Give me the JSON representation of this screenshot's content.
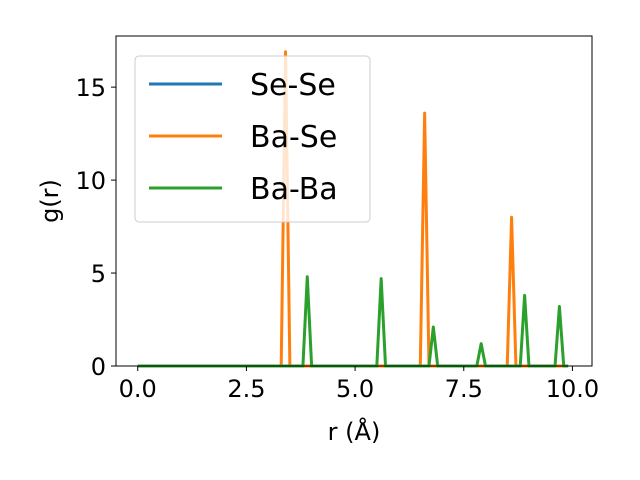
{
  "chart_data": {
    "type": "line",
    "title": "",
    "xlabel": "r (Å)",
    "ylabel": "g(r)",
    "xlim": [
      -0.5,
      10.45
    ],
    "ylim": [
      0,
      17.75
    ],
    "xticks": [
      0.0,
      2.5,
      5.0,
      7.5,
      10.0
    ],
    "xtick_labels": [
      "0.0",
      "2.5",
      "5.0",
      "7.5",
      "10.0"
    ],
    "yticks": [
      0,
      5,
      10,
      15
    ],
    "ytick_labels": [
      "0",
      "5",
      "10",
      "15"
    ],
    "grid": false,
    "legend_position": "upper-left",
    "series": [
      {
        "name": "Se-Se",
        "color": "#1f77b4",
        "x": [
          0.0,
          3.3,
          3.4,
          3.5,
          6.5,
          6.6,
          6.7,
          8.5,
          8.6,
          8.7,
          9.9
        ],
        "y": [
          0,
          0,
          0,
          0,
          0,
          0,
          0,
          0,
          0,
          0,
          0
        ]
      },
      {
        "name": "Ba-Se",
        "color": "#ff7f0e",
        "x": [
          0.0,
          3.3,
          3.4,
          3.5,
          6.5,
          6.6,
          6.7,
          8.5,
          8.6,
          8.7,
          9.9
        ],
        "y": [
          0,
          0,
          16.9,
          0,
          0,
          13.6,
          0,
          0,
          8.0,
          0,
          0
        ]
      },
      {
        "name": "Ba-Ba",
        "color": "#2ca02c",
        "x": [
          0.0,
          3.8,
          3.9,
          4.0,
          5.5,
          5.6,
          5.7,
          6.7,
          6.8,
          6.9,
          7.8,
          7.9,
          8.0,
          8.8,
          8.9,
          9.0,
          9.6,
          9.7,
          9.8,
          9.9
        ],
        "y": [
          0,
          0,
          4.8,
          0,
          0,
          4.7,
          0,
          0,
          2.1,
          0,
          0,
          1.2,
          0,
          0,
          3.8,
          0,
          0,
          3.2,
          0,
          0
        ]
      }
    ]
  }
}
